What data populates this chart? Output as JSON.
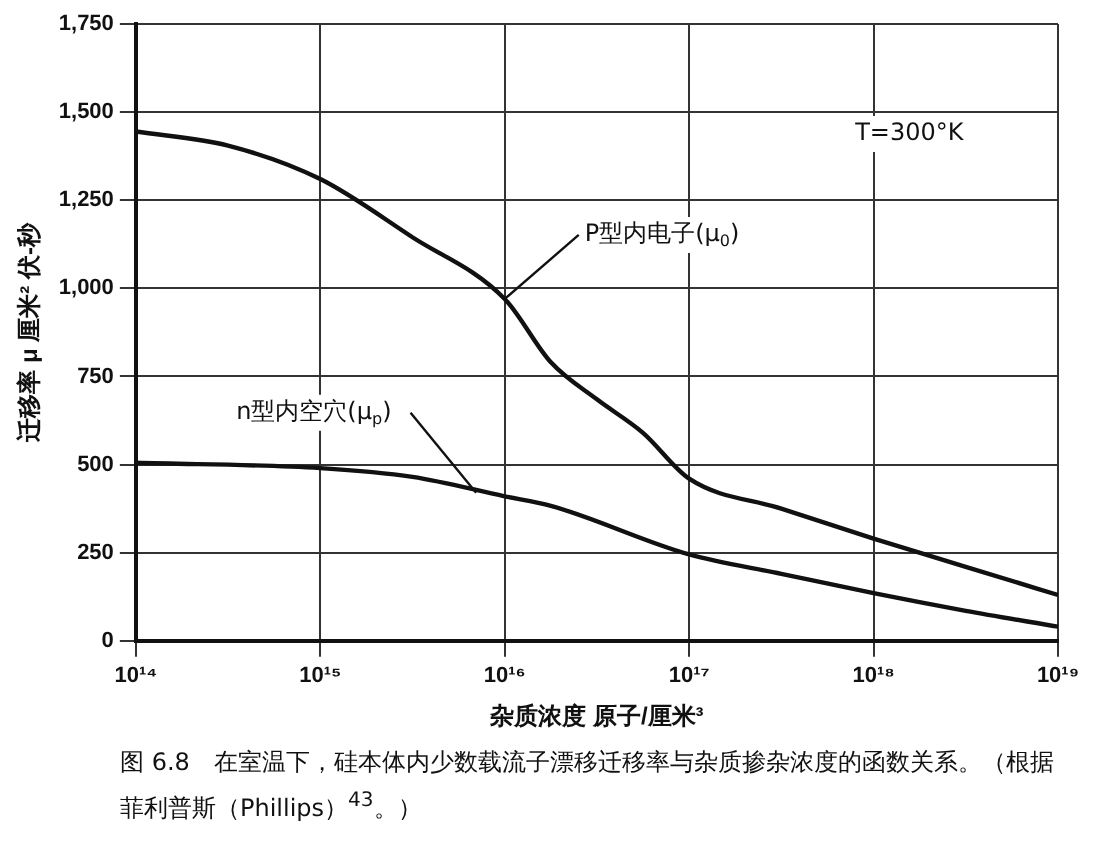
{
  "chart_data": {
    "type": "line",
    "ylabel": "迁移率 μ 厘米² 伏-秒",
    "xlabel": "杂质浓度 原子/厘米³",
    "log": "x",
    "grid": true,
    "legend": false,
    "marker": "none",
    "line_style": "solid",
    "xlim": [
      100000000000000.0,
      1e+19
    ],
    "xticks": [
      {
        "value": 100000000000000.0,
        "label": "10¹⁴"
      },
      {
        "value": 1000000000000000.0,
        "label": "10¹⁵"
      },
      {
        "value": 1e+16,
        "label": "10¹⁶"
      },
      {
        "value": 1e+17,
        "label": "10¹⁷"
      },
      {
        "value": 1e+18,
        "label": "10¹⁸"
      },
      {
        "value": 1e+19,
        "label": "10¹⁹"
      }
    ],
    "ylim": [
      0,
      1750
    ],
    "yticks": [
      0,
      250,
      500,
      750,
      {
        "value": 1000,
        "label": "1,000"
      },
      {
        "value": 1250,
        "label": "1,250"
      },
      {
        "value": 1500,
        "label": "1,500"
      },
      {
        "value": 1750,
        "label": "1,750"
      }
    ],
    "series": [
      {
        "color": "#111111",
        "x": [
          100000000000000.0,
          316000000000000.0,
          1000000000000000.0,
          3160000000000000.0,
          1e+16,
          1.78e+16,
          3.16e+16,
          5.62e+16,
          1e+17,
          3.16e+17,
          1e+18,
          3.16e+18,
          1e+19
        ],
        "values": [
          1445,
          1405,
          1310,
          1145,
          970,
          790,
          685,
          590,
          460,
          375,
          290,
          210,
          130
        ]
      },
      {
        "color": "#111111",
        "x": [
          100000000000000.0,
          1000000000000000.0,
          3160000000000000.0,
          1e+16,
          1.78e+16,
          1e+17,
          3.16e+17,
          1e+18,
          3.16e+18,
          1e+19
        ],
        "values": [
          505,
          490,
          465,
          410,
          383,
          245,
          190,
          135,
          85,
          40
        ]
      }
    ],
    "annotations": [
      "T=300°K",
      {
        "text": "P型内电子(μ$_{0}$)",
        "x": 1e+16,
        "y": 970
      },
      {
        "text": "n型内空穴(μ$_{p}$)",
        "x": 7000000000000000.0,
        "y": 420
      },
      "图 6.8　在室温下，硅本体内少数载流子漂移迁移率与杂质掺杂浓度的函数关系。（根据菲利普斯（Phillips）$^{43}$。）"
    ]
  }
}
